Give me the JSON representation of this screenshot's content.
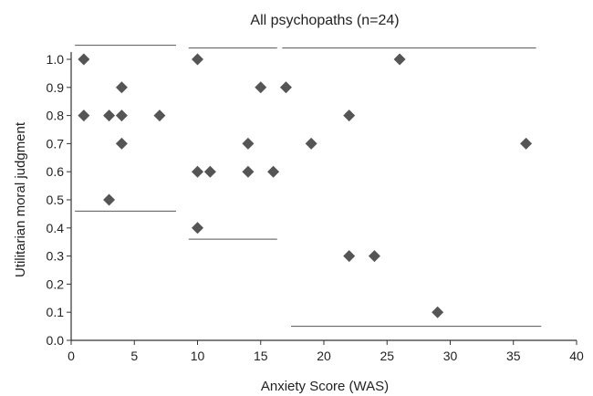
{
  "chart_data": {
    "type": "scatter",
    "title": "All psychopaths (n=24)",
    "xlabel": "Anxiety Score (WAS)",
    "ylabel": "Utilitarian moral judgment",
    "xlim": [
      0,
      40
    ],
    "ylim": [
      0,
      1.0
    ],
    "x_ticks": [
      "0",
      "5",
      "10",
      "15",
      "20",
      "25",
      "30",
      "35",
      "40"
    ],
    "y_ticks": [
      "0.0",
      "0.1",
      "0.2",
      "0.3",
      "0.4",
      "0.5",
      "0.6",
      "0.7",
      "0.8",
      "0.9",
      "1.0"
    ],
    "grid": false,
    "marker": "diamond",
    "colors": {
      "points": "#555555",
      "axes": "#333333",
      "lines": "#555555"
    },
    "points": [
      {
        "x": 1,
        "y": 1.0
      },
      {
        "x": 1,
        "y": 0.8
      },
      {
        "x": 3,
        "y": 0.8
      },
      {
        "x": 3,
        "y": 0.5
      },
      {
        "x": 4,
        "y": 0.9
      },
      {
        "x": 4,
        "y": 0.8
      },
      {
        "x": 4,
        "y": 0.7
      },
      {
        "x": 7,
        "y": 0.8
      },
      {
        "x": 10,
        "y": 1.0
      },
      {
        "x": 10,
        "y": 0.6
      },
      {
        "x": 10,
        "y": 0.4
      },
      {
        "x": 11,
        "y": 0.6
      },
      {
        "x": 14,
        "y": 0.7
      },
      {
        "x": 14,
        "y": 0.6
      },
      {
        "x": 15,
        "y": 0.9
      },
      {
        "x": 16,
        "y": 0.6
      },
      {
        "x": 17,
        "y": 0.9
      },
      {
        "x": 19,
        "y": 0.7
      },
      {
        "x": 22,
        "y": 0.8
      },
      {
        "x": 22,
        "y": 0.3
      },
      {
        "x": 24,
        "y": 0.3
      },
      {
        "x": 26,
        "y": 1.0
      },
      {
        "x": 29,
        "y": 0.1
      },
      {
        "x": 36,
        "y": 0.7
      }
    ],
    "reference_lines": [
      {
        "x1": 0.3,
        "x2": 8.3,
        "y": 1.05
      },
      {
        "x1": 0.3,
        "x2": 8.3,
        "y": 0.46
      },
      {
        "x1": 9.3,
        "x2": 16.3,
        "y": 1.04
      },
      {
        "x1": 9.3,
        "x2": 16.3,
        "y": 0.36
      },
      {
        "x1": 16.7,
        "x2": 36.8,
        "y": 1.04
      },
      {
        "x1": 17.4,
        "x2": 37.2,
        "y": 0.05
      }
    ]
  }
}
